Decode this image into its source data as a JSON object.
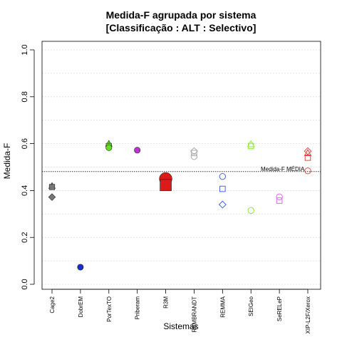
{
  "chart_data": {
    "type": "scatter",
    "title_line1": "Medida-F agrupada por sistema",
    "title_line2": "[Classificação : ALT : Selectivo]",
    "xlabel": "Sistemas",
    "ylabel": "Medida-F",
    "ylim": [
      0,
      1
    ],
    "yticks": [
      "0.0",
      "0.2",
      "0.4",
      "0.6",
      "0.8",
      "1.0"
    ],
    "grid": "horizontal dotted",
    "categories": [
      "Cage2",
      "DobrEM",
      "PorTexTO",
      "Priberam",
      "R3M",
      "REMBRANDT",
      "REMMA",
      "SEIGeo",
      "SeRELeP",
      "XIP-L2F/Xerox"
    ],
    "reference_line": {
      "label": "Medida-F MÉDIA",
      "value": 0.481
    },
    "points": [
      {
        "category": "Cage2",
        "y": 0.42,
        "shape": "triangle",
        "filled": true,
        "color": "#777777"
      },
      {
        "category": "Cage2",
        "y": 0.415,
        "shape": "square",
        "filled": true,
        "color": "#777777"
      },
      {
        "category": "Cage2",
        "y": 0.372,
        "shape": "diamond",
        "filled": true,
        "color": "#777777"
      },
      {
        "category": "DobrEM",
        "y": 0.073,
        "shape": "circle",
        "filled": true,
        "color": "#1a2ecc"
      },
      {
        "category": "PorTexTO",
        "y": 0.6,
        "shape": "triangle",
        "filled": true,
        "color": "#66dd22"
      },
      {
        "category": "PorTexTO",
        "y": 0.59,
        "shape": "square",
        "filled": true,
        "color": "#66dd22"
      },
      {
        "category": "PorTexTO",
        "y": 0.583,
        "shape": "circle",
        "filled": true,
        "color": "#66dd22"
      },
      {
        "category": "Priberam",
        "y": 0.572,
        "shape": "circle",
        "filled": true,
        "color": "#c030d8"
      },
      {
        "category": "R3M",
        "y": 0.45,
        "shape": "circle",
        "filled": true,
        "color": "#dd1a1a",
        "size": "large"
      },
      {
        "category": "R3M",
        "y": 0.423,
        "shape": "square",
        "filled": true,
        "color": "#dd1a1a",
        "size": "large"
      },
      {
        "category": "REMBRANDT",
        "y": 0.568,
        "shape": "diamond",
        "filled": false,
        "color": "#aaaaaa"
      },
      {
        "category": "REMBRANDT",
        "y": 0.56,
        "shape": "square",
        "filled": false,
        "color": "#aaaaaa"
      },
      {
        "category": "REMBRANDT",
        "y": 0.545,
        "shape": "circle",
        "filled": false,
        "color": "#aaaaaa"
      },
      {
        "category": "REMMA",
        "y": 0.46,
        "shape": "circle",
        "filled": false,
        "color": "#4466ee"
      },
      {
        "category": "REMMA",
        "y": 0.407,
        "shape": "square",
        "filled": false,
        "color": "#4466ee"
      },
      {
        "category": "REMMA",
        "y": 0.34,
        "shape": "diamond",
        "filled": false,
        "color": "#4466ee"
      },
      {
        "category": "SEIGeo",
        "y": 0.598,
        "shape": "triangle",
        "filled": false,
        "color": "#88ee33"
      },
      {
        "category": "SEIGeo",
        "y": 0.59,
        "shape": "square",
        "filled": false,
        "color": "#88ee33"
      },
      {
        "category": "SEIGeo",
        "y": 0.315,
        "shape": "circle",
        "filled": false,
        "color": "#88ee33"
      },
      {
        "category": "SeRELeP",
        "y": 0.373,
        "shape": "circle",
        "filled": false,
        "color": "#dd66ee"
      },
      {
        "category": "SeRELeP",
        "y": 0.357,
        "shape": "square",
        "filled": false,
        "color": "#dd66ee"
      },
      {
        "category": "XIP-L2F/Xerox",
        "y": 0.568,
        "shape": "diamond",
        "filled": false,
        "color": "#ee4444"
      },
      {
        "category": "XIP-L2F/Xerox",
        "y": 0.56,
        "shape": "triangle",
        "filled": false,
        "color": "#ee4444"
      },
      {
        "category": "XIP-L2F/Xerox",
        "y": 0.54,
        "shape": "square",
        "filled": false,
        "color": "#ee4444"
      },
      {
        "category": "XIP-L2F/Xerox",
        "y": 0.484,
        "shape": "circle",
        "filled": false,
        "color": "#ee4444"
      }
    ]
  }
}
